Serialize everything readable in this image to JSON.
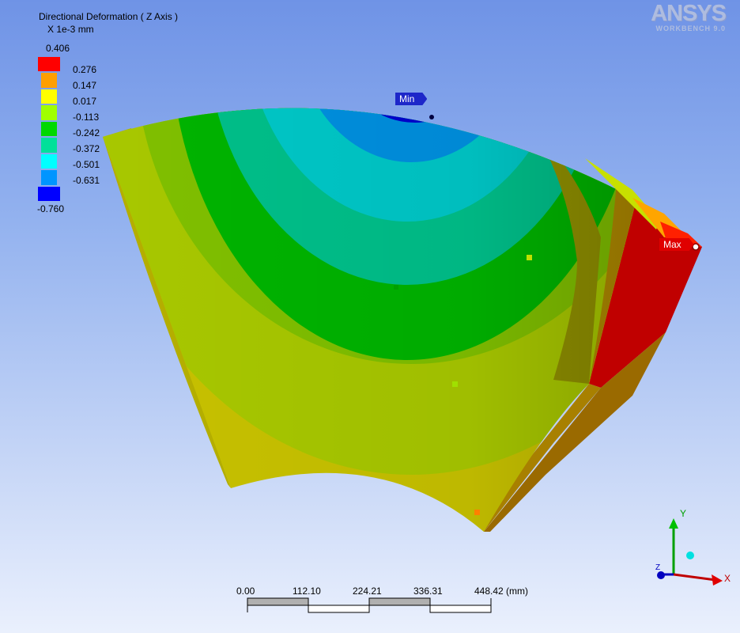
{
  "legend": {
    "title": "Directional Deformation ( Z Axis )",
    "units": "X 1e-3 mm",
    "max_label": "0.406",
    "min_label": "-0.760",
    "band_values": [
      "0.276",
      "0.147",
      "0.017",
      "-0.113",
      "-0.242",
      "-0.372",
      "-0.501",
      "-0.631"
    ],
    "band_colors": [
      "#ff0000",
      "#ff9f00",
      "#ffff00",
      "#a0ff00",
      "#00d800",
      "#00e09a",
      "#00ffff",
      "#0095ff",
      "#0000ff"
    ]
  },
  "logo": {
    "brand": "ANSYS",
    "product": "WORKBENCH 9.0"
  },
  "probes": {
    "min": "Min",
    "max": "Max"
  },
  "scale_bar": {
    "ticks": [
      "0.00",
      "112.10",
      "224.21",
      "336.31",
      "448.42 (mm)"
    ]
  },
  "triad": {
    "x": "X",
    "y": "Y",
    "z": "Z"
  }
}
